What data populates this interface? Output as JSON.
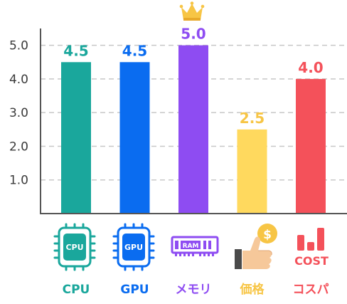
{
  "chart_data": {
    "type": "bar",
    "categories": [
      "CPU",
      "GPU",
      "メモリ",
      "価格",
      "コスパ"
    ],
    "values": [
      4.5,
      4.5,
      5.0,
      2.5,
      4.0
    ],
    "value_labels": [
      "4.5",
      "4.5",
      "5.0",
      "2.5",
      "4.0"
    ],
    "colors": [
      "#1aa79c",
      "#0a6cf0",
      "#8e4cf2",
      "#ffd95e",
      "#f4515a"
    ],
    "label_colors": [
      "#1aa79c",
      "#0a6cf0",
      "#8e4cf2",
      "#f7c545",
      "#f4515a"
    ],
    "ylim": [
      0,
      5.5
    ],
    "yticks": [
      1.0,
      2.0,
      3.0,
      4.0,
      5.0
    ],
    "ytick_labels": [
      "1.0",
      "2.0",
      "3.0",
      "4.0",
      "5.0"
    ],
    "grid": true,
    "title": "",
    "xlabel": "",
    "ylabel": ""
  },
  "icons": {
    "cpu": {
      "name": "cpu-chip-icon",
      "text": "CPU"
    },
    "gpu": {
      "name": "gpu-chip-icon",
      "text": "GPU"
    },
    "ram": {
      "name": "ram-module-icon",
      "text": "RAM"
    },
    "price": {
      "name": "thumbs-up-coin-icon",
      "text": "$"
    },
    "cost": {
      "name": "cost-bars-icon",
      "text": "COST"
    },
    "crown": {
      "name": "crown-icon"
    }
  }
}
